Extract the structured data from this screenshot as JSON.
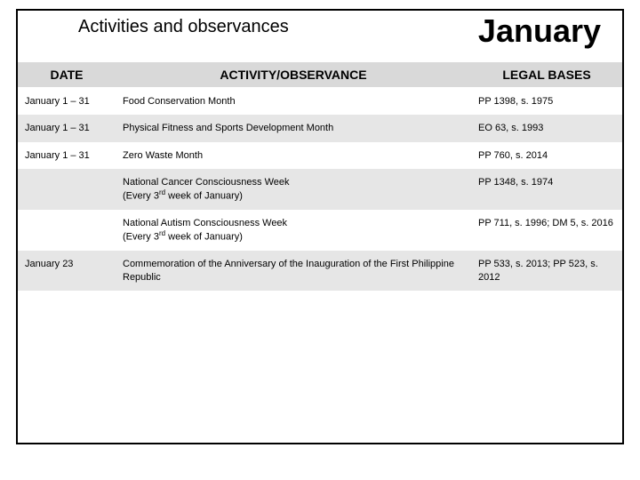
{
  "header": {
    "subtitle": "Activities and observances",
    "month": "January"
  },
  "table": {
    "columns": {
      "date": "DATE",
      "activity": "ACTIVITY/OBSERVANCE",
      "legal": "LEGAL BASES"
    },
    "rows": [
      {
        "date": "January 1 – 31",
        "activity": "Food Conservation Month",
        "legal": "PP 1398, s. 1975"
      },
      {
        "date": "January 1 – 31",
        "activity": "Physical Fitness and Sports Development Month",
        "legal": "EO 63, s. 1993"
      },
      {
        "date": "January 1 – 31",
        "activity": "Zero Waste Month",
        "legal": "PP 760, s. 2014"
      },
      {
        "date": "",
        "activity": "National Cancer Consciousness Week\n(Every 3rd week of January)",
        "legal": "PP 1348, s. 1974"
      },
      {
        "date": "",
        "activity": "National Autism Consciousness Week\n(Every 3rd week of January)",
        "legal": "PP 711, s. 1996; DM 5, s. 2016"
      },
      {
        "date": "January 23",
        "activity": "Commemoration of the Anniversary of the Inauguration of the First Philippine Republic",
        "legal": "PP 533, s. 2013; PP 523, s. 2012"
      }
    ]
  },
  "colors": {
    "header_row_bg": "#d9d9d9",
    "row_odd_bg": "#ffffff",
    "row_even_bg": "#e6e6e6",
    "border": "#000000",
    "text": "#000000"
  },
  "typography": {
    "month_fontsize": 36,
    "subtitle_fontsize": 20,
    "th_fontsize": 14,
    "td_fontsize": 11
  }
}
